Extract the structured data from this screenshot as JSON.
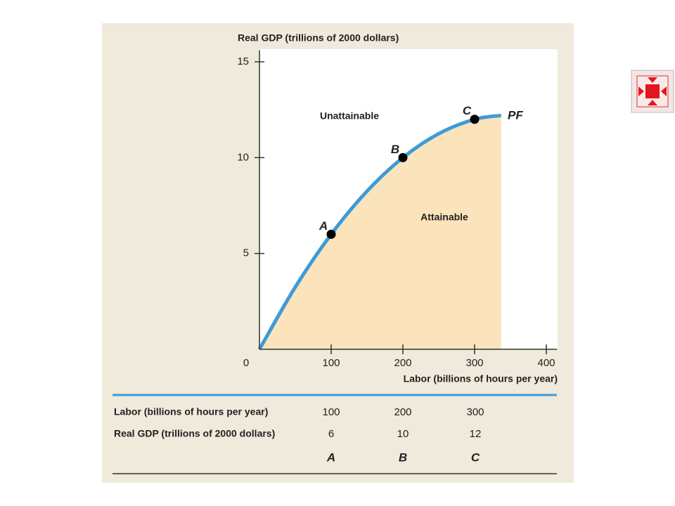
{
  "chart_data": {
    "type": "line",
    "x_label": "Labor (billions of hours per year)",
    "y_label": "Real GDP (trillions of 2000 dollars)",
    "xlim": [
      0,
      415
    ],
    "ylim": [
      0,
      15.6
    ],
    "xticks": [
      0,
      100,
      200,
      300,
      400
    ],
    "yticks": [
      5,
      10,
      15
    ],
    "series": [
      {
        "name": "PF",
        "color": "#3d9bd8",
        "fill": "#fbe3bb",
        "x": [
          0,
          50,
          100,
          150,
          200,
          250,
          300,
          337
        ],
        "values": [
          0,
          3.25,
          6,
          8.25,
          10,
          11.25,
          12,
          12.2
        ]
      }
    ],
    "points": {
      "labels": [
        "A",
        "B",
        "C"
      ],
      "x": [
        100,
        200,
        300
      ],
      "values": [
        6,
        10,
        12
      ],
      "color": "#000000"
    },
    "annotations": [
      "Unattainable",
      "Attainable"
    ]
  },
  "table": {
    "rows": [
      {
        "label": "Labor (billions of hours per year)",
        "values": [
          100,
          200,
          300
        ]
      },
      {
        "label": "Real GDP (trillions of 2000 dollars)",
        "values": [
          6,
          10,
          12
        ]
      }
    ],
    "point_labels": [
      "A",
      "B",
      "C"
    ]
  }
}
